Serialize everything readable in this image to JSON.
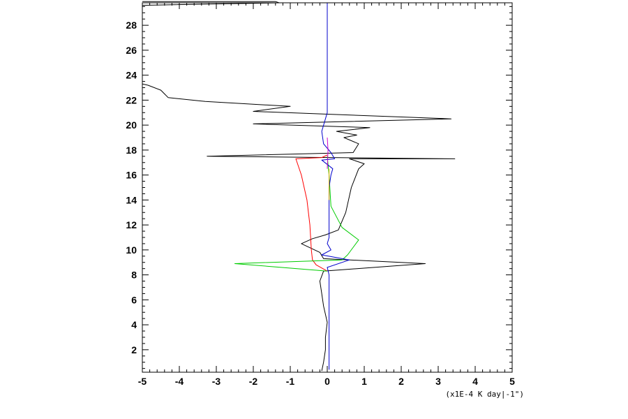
{
  "chart_data": {
    "type": "line",
    "xlim": [
      -5,
      5
    ],
    "ylim": [
      0.2,
      29.8
    ],
    "x_ticks": [
      -5,
      -4,
      -3,
      -2,
      -1,
      0,
      1,
      2,
      3,
      4,
      5
    ],
    "y_ticks": [
      2,
      4,
      6,
      8,
      10,
      12,
      14,
      16,
      18,
      20,
      22,
      24,
      26,
      28
    ],
    "x_unit_label": "(x1E-4 K day|-1\")",
    "grid": false,
    "legend": "none",
    "series": [
      {
        "color": "#000000",
        "points": [
          [
            -0.15,
            0.3
          ],
          [
            -0.1,
            1.0
          ],
          [
            -0.05,
            2.0
          ],
          [
            -0.05,
            3.0
          ],
          [
            0.0,
            4.2
          ],
          [
            -0.1,
            5.5
          ],
          [
            -0.15,
            6.5
          ],
          [
            -0.2,
            7.5
          ],
          [
            -0.1,
            8.3
          ],
          [
            2.65,
            8.9
          ],
          [
            -0.1,
            9.3
          ],
          [
            -0.2,
            9.8
          ],
          [
            -0.7,
            10.5
          ],
          [
            -0.4,
            10.9
          ],
          [
            -0.05,
            11.2
          ],
          [
            0.3,
            11.6
          ],
          [
            0.5,
            13.0
          ],
          [
            0.65,
            15.0
          ],
          [
            0.85,
            16.5
          ],
          [
            1.0,
            16.9
          ],
          [
            0.6,
            17.3
          ],
          [
            3.45,
            17.3
          ],
          [
            -3.25,
            17.5
          ],
          [
            0.7,
            17.8
          ],
          [
            0.85,
            18.5
          ],
          [
            0.45,
            19.0
          ],
          [
            0.8,
            19.2
          ],
          [
            0.25,
            19.5
          ],
          [
            1.15,
            19.8
          ],
          [
            -2.0,
            20.1
          ],
          [
            3.35,
            20.5
          ],
          [
            -2.0,
            21.1
          ],
          [
            -1.0,
            21.5
          ],
          [
            -3.3,
            21.9
          ],
          [
            -4.3,
            22.2
          ],
          [
            -4.4,
            22.5
          ],
          [
            -4.5,
            22.8
          ],
          [
            -4.85,
            23.2
          ],
          [
            -5.0,
            23.3
          ]
        ]
      },
      {
        "color": "#000000",
        "points": [
          [
            -5.0,
            29.6
          ],
          [
            -1.3,
            29.8
          ],
          [
            -1.4,
            29.9
          ],
          [
            -5.0,
            29.9
          ]
        ]
      },
      {
        "color": "#ff0000",
        "points": [
          [
            0.0,
            8.3
          ],
          [
            -0.3,
            8.8
          ],
          [
            -0.4,
            9.2
          ],
          [
            -0.43,
            10.0
          ],
          [
            -0.47,
            12.0
          ],
          [
            -0.55,
            14.0
          ],
          [
            -0.7,
            16.0
          ],
          [
            -0.85,
            17.3
          ],
          [
            -0.15,
            17.4
          ],
          [
            0.0,
            17.6
          ]
        ]
      },
      {
        "color": "#00cc00",
        "points": [
          [
            0.0,
            8.3
          ],
          [
            -2.5,
            8.9
          ],
          [
            0.4,
            9.2
          ],
          [
            0.55,
            9.6
          ],
          [
            0.85,
            10.8
          ],
          [
            0.4,
            11.8
          ],
          [
            0.1,
            13.5
          ],
          [
            0.05,
            16.0
          ],
          [
            0.0,
            17.5
          ]
        ]
      },
      {
        "color": "#0000cc",
        "points": [
          [
            0.05,
            0.4
          ],
          [
            0.05,
            4.0
          ],
          [
            0.05,
            8.0
          ],
          [
            0.0,
            8.6
          ],
          [
            0.6,
            9.2
          ],
          [
            -0.15,
            9.6
          ],
          [
            0.1,
            10.0
          ],
          [
            0.0,
            10.5
          ],
          [
            0.05,
            11.0
          ],
          [
            0.05,
            15.0
          ],
          [
            0.1,
            16.0
          ],
          [
            0.15,
            16.5
          ],
          [
            -0.15,
            17.2
          ],
          [
            0.2,
            17.3
          ],
          [
            0.1,
            17.8
          ],
          [
            -0.1,
            18.5
          ],
          [
            -0.15,
            19.5
          ],
          [
            0.0,
            21.0
          ],
          [
            0.0,
            25.0
          ],
          [
            0.0,
            29.8
          ]
        ]
      },
      {
        "color": "#cc00cc",
        "points": [
          [
            0.0,
            16.5
          ],
          [
            0.02,
            18.0
          ],
          [
            0.0,
            19.0
          ]
        ]
      },
      {
        "color": "#ddaa00",
        "points": [
          [
            0.05,
            14.0
          ],
          [
            0.05,
            16.5
          ]
        ]
      }
    ]
  }
}
